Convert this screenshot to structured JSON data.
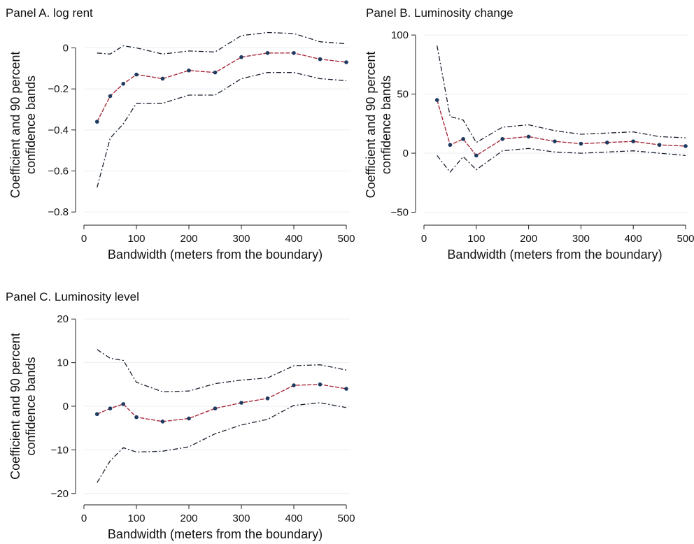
{
  "chart_data": [
    {
      "type": "line",
      "title": "Panel A. log rent",
      "xlabel": "Bandwidth (meters from the boundary)",
      "ylabel": [
        "Coefficient and 90 percent",
        "confidence bands"
      ],
      "xlim": [
        0,
        500
      ],
      "ylim": [
        -0.83,
        0.08
      ],
      "xticks": [
        0,
        100,
        200,
        300,
        400,
        500
      ],
      "xtick_labels": [
        "0",
        "100",
        "200",
        "300",
        "400",
        "500"
      ],
      "yticks": [
        0,
        -0.2,
        -0.4,
        -0.6,
        -0.8
      ],
      "ytick_labels": [
        "0",
        "−0.2",
        "−0.4",
        "−0.6",
        "−0.8"
      ],
      "grid": true,
      "x": [
        25,
        50,
        75,
        100,
        150,
        200,
        250,
        300,
        350,
        400,
        450,
        500
      ],
      "series": [
        {
          "role": "coefficient",
          "values": [
            -0.36,
            -0.235,
            -0.175,
            -0.13,
            -0.15,
            -0.11,
            -0.12,
            -0.045,
            -0.025,
            -0.025,
            -0.055,
            -0.07
          ]
        },
        {
          "role": "upper_band",
          "values": [
            -0.025,
            -0.03,
            0.01,
            0.0,
            -0.03,
            -0.015,
            -0.02,
            0.06,
            0.075,
            0.07,
            0.03,
            0.02
          ]
        },
        {
          "role": "lower_band",
          "values": [
            -0.68,
            -0.44,
            -0.37,
            -0.27,
            -0.27,
            -0.23,
            -0.23,
            -0.15,
            -0.12,
            -0.12,
            -0.15,
            -0.16
          ]
        }
      ]
    },
    {
      "type": "line",
      "title": "Panel B. Luminosity change",
      "xlabel": "Bandwidth (meters from the boundary)",
      "ylabel": [
        "Coefficient and 90 percent",
        "confidence bands"
      ],
      "xlim": [
        0,
        500
      ],
      "ylim": [
        -55,
        103
      ],
      "xticks": [
        0,
        100,
        200,
        300,
        400,
        500
      ],
      "xtick_labels": [
        "0",
        "100",
        "200",
        "300",
        "400",
        "500"
      ],
      "yticks": [
        100,
        50,
        0,
        -50
      ],
      "ytick_labels": [
        "100",
        "50",
        "0",
        "−50"
      ],
      "grid": true,
      "x": [
        25,
        50,
        75,
        100,
        150,
        200,
        250,
        300,
        350,
        400,
        450,
        500
      ],
      "series": [
        {
          "role": "coefficient",
          "values": [
            45,
            7,
            12,
            -2,
            12,
            14,
            10,
            8,
            9,
            10,
            7,
            6
          ]
        },
        {
          "role": "upper_band",
          "values": [
            91,
            31,
            28,
            9,
            22,
            24,
            19,
            16,
            17,
            18,
            14,
            13
          ]
        },
        {
          "role": "lower_band",
          "values": [
            -2,
            -16,
            -3,
            -14,
            2,
            4,
            1,
            0,
            1,
            2,
            0,
            -2
          ]
        }
      ]
    },
    {
      "type": "line",
      "title": "Panel C. Luminosity level",
      "xlabel": "Bandwidth (meters from the boundary)",
      "ylabel": [
        "Coefficient and 90 percent",
        "confidence bands"
      ],
      "xlim": [
        0,
        500
      ],
      "ylim": [
        -21,
        21
      ],
      "xticks": [
        0,
        100,
        200,
        300,
        400,
        500
      ],
      "xtick_labels": [
        "0",
        "100",
        "200",
        "300",
        "400",
        "500"
      ],
      "yticks": [
        20,
        10,
        0,
        -10,
        -20
      ],
      "ytick_labels": [
        "20",
        "10",
        "0",
        "−10",
        "−20"
      ],
      "grid": true,
      "x": [
        25,
        50,
        75,
        100,
        150,
        200,
        250,
        300,
        350,
        400,
        450,
        500
      ],
      "series": [
        {
          "role": "coefficient",
          "values": [
            -1.8,
            -0.5,
            0.5,
            -2.5,
            -3.5,
            -2.8,
            -0.5,
            0.8,
            1.8,
            4.8,
            5.0,
            4.0
          ]
        },
        {
          "role": "upper_band",
          "values": [
            13,
            11,
            10.5,
            5.5,
            3.3,
            3.5,
            5.2,
            6.0,
            6.5,
            9.3,
            9.5,
            8.3
          ]
        },
        {
          "role": "lower_band",
          "values": [
            -17.5,
            -12.5,
            -9.5,
            -10.5,
            -10.3,
            -9.3,
            -6.3,
            -4.3,
            -3.0,
            0.2,
            0.8,
            -0.3
          ]
        }
      ]
    }
  ]
}
